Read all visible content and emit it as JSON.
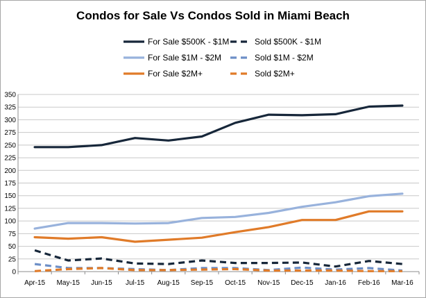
{
  "chart_data": {
    "type": "line",
    "title": "Condos for Sale Vs Condos Sold in Miami Beach",
    "xlabel": "",
    "ylabel": "",
    "categories": [
      "Apr-15",
      "May-15",
      "Jun-15",
      "Jul-15",
      "Aug-15",
      "Sep-15",
      "Oct-15",
      "Nov-15",
      "Dec-15",
      "Jan-16",
      "Feb-16",
      "Mar-16"
    ],
    "ylim": [
      0,
      350
    ],
    "ytick_step": 25,
    "grid": true,
    "legend_placement": "top",
    "series": [
      {
        "name": "For Sale $500K - $1M",
        "color": "#17273a",
        "dash": false,
        "values": [
          246,
          246,
          250,
          264,
          259,
          267,
          294,
          310,
          309,
          311,
          326,
          328
        ]
      },
      {
        "name": "Sold $500K - $1M",
        "color": "#17273a",
        "dash": true,
        "values": [
          42,
          22,
          26,
          16,
          15,
          22,
          17,
          17,
          18,
          10,
          21,
          15
        ]
      },
      {
        "name": "For Sale $1M - $2M",
        "color": "#98b2dc",
        "dash": false,
        "values": [
          85,
          96,
          96,
          95,
          96,
          106,
          108,
          116,
          128,
          137,
          149,
          154
        ]
      },
      {
        "name": "Sold $1M - $2M",
        "color": "#6d8fc7",
        "dash": true,
        "values": [
          15,
          7,
          7,
          5,
          3,
          7,
          7,
          3,
          8,
          4,
          7,
          2
        ]
      },
      {
        "name": "For Sale $2M+",
        "color": "#e07b29",
        "dash": false,
        "values": [
          68,
          65,
          68,
          59,
          63,
          67,
          78,
          88,
          102,
          102,
          119,
          119
        ]
      },
      {
        "name": "Sold $2M+",
        "color": "#e07b29",
        "dash": true,
        "values": [
          1,
          5,
          7,
          3,
          3,
          4,
          5,
          2,
          2,
          2,
          1,
          1
        ]
      }
    ]
  }
}
